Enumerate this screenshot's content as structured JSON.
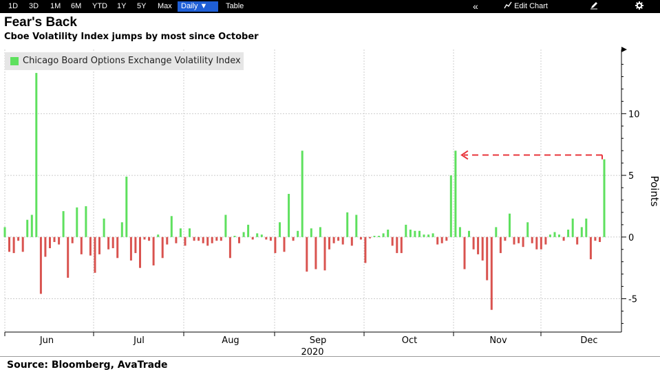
{
  "toolbar": {
    "ranges": [
      "1D",
      "3D",
      "1M",
      "6M",
      "YTD",
      "1Y",
      "5Y",
      "Max"
    ],
    "frequency": "Daily ▼",
    "table": "Table",
    "collapse": "«",
    "edit_chart": "Edit Chart",
    "edit_icon": "pencil-icon",
    "settings_icon": "gear-icon"
  },
  "title": "Fear's Back",
  "subtitle": "Cboe Volatility Index jumps by most since October",
  "source": "Source: Bloomberg, AvaTrade",
  "colors": {
    "up": "#5ee05e",
    "down": "#d9534f",
    "annotation": "#e8333a",
    "grid": "#cccccc"
  },
  "chart_data": {
    "type": "bar",
    "title": "Fear's Back",
    "subtitle": "Cboe Volatility Index jumps by most since October",
    "series": [
      {
        "name": "Chicago Board Options Exchange Volatility Index",
        "values": [
          0.8,
          -1.2,
          -1.3,
          -0.3,
          -1.2,
          1.4,
          1.8,
          13.3,
          -4.6,
          -1.6,
          -0.9,
          -0.4,
          -0.6,
          2.1,
          -3.3,
          -0.5,
          2.4,
          -1.4,
          2.5,
          -1.5,
          -2.9,
          -1.4,
          1.5,
          -1.0,
          -0.9,
          -1.7,
          1.2,
          4.9,
          -1.9,
          -1.3,
          -2.5,
          -0.2,
          -0.3,
          -2.3,
          0.2,
          -1.7,
          -0.6,
          1.7,
          -0.5,
          0.7,
          -0.7,
          0.7,
          -0.3,
          -0.3,
          -0.5,
          -0.7,
          -0.5,
          -0.3,
          -0.3,
          1.8,
          -1.7,
          0.1,
          -0.5,
          0.4,
          1.0,
          -0.2,
          0.3,
          0.2,
          -0.2,
          -0.3,
          -1.3,
          1.2,
          -1.2,
          3.5,
          -0.3,
          0.5,
          7.0,
          -2.8,
          0.7,
          -2.6,
          0.8,
          -2.7,
          -1.0,
          -0.5,
          -0.3,
          -0.6,
          2.0,
          -0.7,
          1.8,
          -0.2,
          -2.1,
          -0.1,
          0.1,
          0.1,
          0.3,
          0.6,
          -0.7,
          -1.3,
          -1.3,
          1.0,
          0.6,
          0.5,
          0.5,
          0.2,
          0.2,
          0.3,
          -0.6,
          -0.5,
          -0.3,
          5.0,
          7.0,
          0.8,
          -2.6,
          0.5,
          -1.0,
          -1.4,
          -1.9,
          -3.5,
          -5.9,
          0.8,
          -1.3,
          -0.3,
          1.9,
          -0.6,
          -0.5,
          -0.8,
          1.2,
          -0.5,
          -1.0,
          -1.0,
          -0.6,
          0.2,
          0.4,
          0.2,
          -0.3,
          0.6,
          1.5,
          -0.6,
          0.8,
          1.5,
          -1.8,
          -0.3,
          -0.4,
          6.3
        ],
        "colors": "positive values green, negative values red"
      }
    ],
    "x_axis": {
      "ticks": [
        "Jun",
        "Jul",
        "Aug",
        "Sep",
        "Oct",
        "Nov",
        "Dec"
      ],
      "year": "2020"
    },
    "y_axis": {
      "ticks": [
        -5,
        0,
        5,
        10
      ],
      "label": "Points",
      "ylim": [
        -7.7,
        15.2
      ],
      "side": "right"
    },
    "legend": {
      "position": "top-left",
      "entries": [
        "Chicago Board Options Exchange Volatility Index"
      ]
    },
    "grid": true,
    "annotation": {
      "type": "dashed-arrow",
      "from_value": 6.3,
      "to_value": 7.0,
      "color": "red"
    }
  }
}
